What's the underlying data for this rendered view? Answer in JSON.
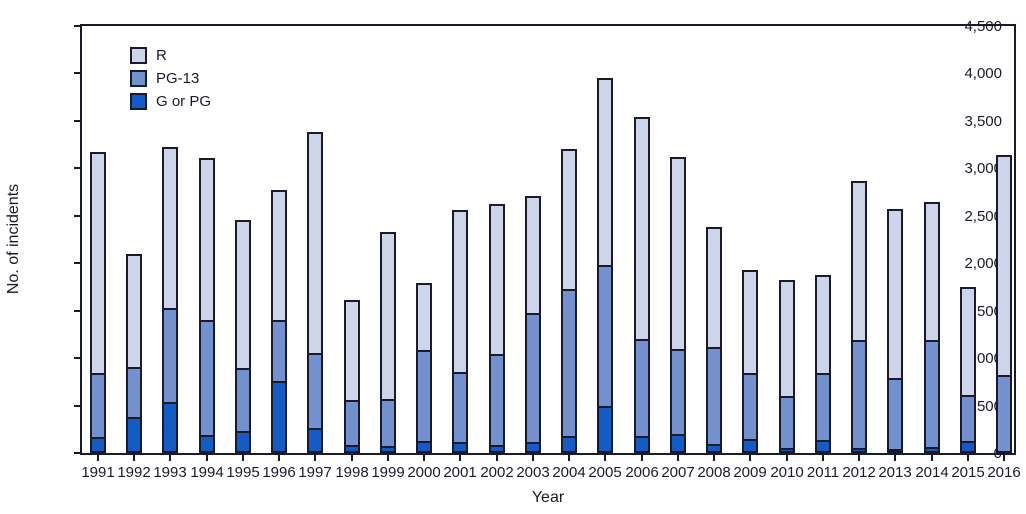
{
  "figure": {
    "background": "#ffffff",
    "axis_color": "#1a1a2b",
    "text_color": "#1a1a2b"
  },
  "chart_data": {
    "type": "bar",
    "stacked": true,
    "title": "",
    "xlabel": "Year",
    "ylabel": "No. of incidents",
    "ylim": [
      0,
      4500
    ],
    "ytick_step": 500,
    "ytick_labels": [
      "0",
      "500",
      "1,000",
      "1,500",
      "2,000",
      "2,500",
      "3,000",
      "3,500",
      "4,000",
      "4,500"
    ],
    "grid": false,
    "legend_position": "top-left-inside",
    "legend_order": [
      "R",
      "PG-13",
      "G or PG"
    ],
    "categories": [
      "1991",
      "1992",
      "1993",
      "1994",
      "1995",
      "1996",
      "1997",
      "1998",
      "1999",
      "2000",
      "2001",
      "2002",
      "2003",
      "2004",
      "2005",
      "2006",
      "2007",
      "2008",
      "2009",
      "2010",
      "2011",
      "2012",
      "2013",
      "2014",
      "2015",
      "2016"
    ],
    "series": [
      {
        "name": "G or PG",
        "color": "#135bc5",
        "values": [
          150,
          370,
          520,
          170,
          210,
          750,
          250,
          60,
          50,
          110,
          100,
          60,
          100,
          160,
          480,
          160,
          180,
          70,
          130,
          31,
          120,
          30,
          20,
          40,
          110,
          0
        ]
      },
      {
        "name": "PG-13",
        "color": "#7391cf",
        "values": [
          680,
          530,
          1000,
          1230,
          680,
          650,
          800,
          490,
          510,
          980,
          750,
          980,
          1380,
          1570,
          1500,
          1030,
          910,
          1050,
          710,
          564,
          720,
          1160,
          760,
          1150,
          500,
          809
        ]
      },
      {
        "name": "R",
        "color": "#cdd5eb",
        "values": [
          2340,
          1200,
          1700,
          1710,
          1570,
          1370,
          2330,
          1060,
          1770,
          700,
          1710,
          1580,
          1230,
          1470,
          1970,
          2350,
          2030,
          1260,
          1090,
          1229,
          1040,
          1680,
          1790,
          1450,
          1140,
          2336
        ]
      }
    ],
    "totals": [
      3170,
      2100,
      3220,
      3110,
      2460,
      2770,
      3380,
      1610,
      2330,
      1790,
      2560,
      2620,
      2710,
      3200,
      3950,
      3540,
      3120,
      2380,
      1930,
      1824,
      1880,
      2870,
      2570,
      2640,
      1750,
      3145
    ]
  }
}
